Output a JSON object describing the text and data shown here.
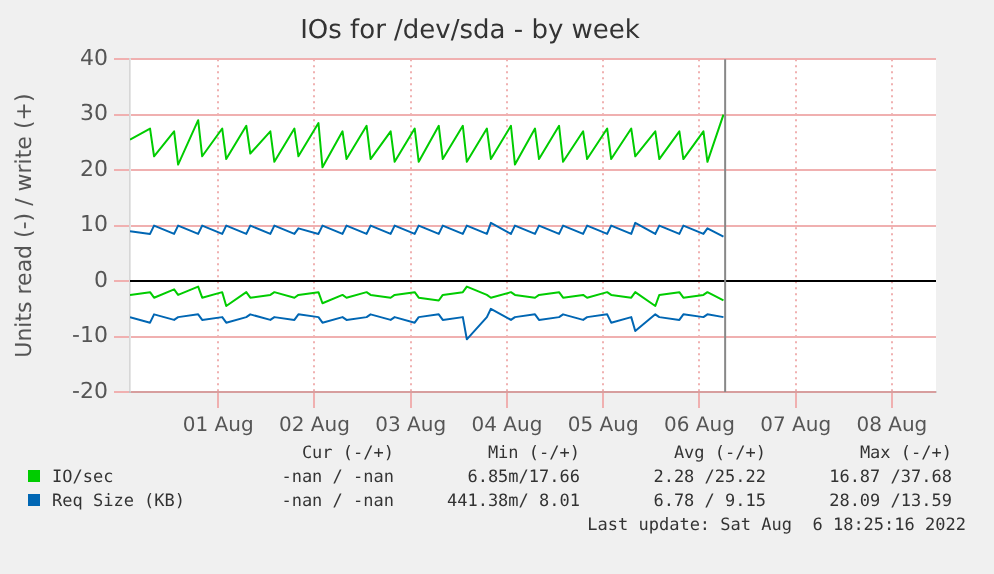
{
  "chart_data": {
    "type": "line",
    "title": "IOs for /dev/sda - by week",
    "ylabel": "Units read (-) / write (+)",
    "x": [
      "2022-07-31T14:00",
      "2022-07-31T19:00",
      "2022-07-31T20:00",
      "2022-08-01T01:00",
      "2022-08-01T02:00",
      "2022-08-01T07:00",
      "2022-08-01T08:00",
      "2022-08-01T13:00",
      "2022-08-01T14:00",
      "2022-08-01T19:00",
      "2022-08-01T20:00",
      "2022-08-02T01:00",
      "2022-08-02T02:00",
      "2022-08-02T07:00",
      "2022-08-02T08:00",
      "2022-08-02T13:00",
      "2022-08-02T14:00",
      "2022-08-02T19:00",
      "2022-08-02T20:00",
      "2022-08-03T01:00",
      "2022-08-03T02:00",
      "2022-08-03T07:00",
      "2022-08-03T08:00",
      "2022-08-03T13:00",
      "2022-08-03T14:00",
      "2022-08-03T19:00",
      "2022-08-03T20:00",
      "2022-08-04T01:00",
      "2022-08-04T02:00",
      "2022-08-04T07:00",
      "2022-08-04T08:00",
      "2022-08-04T13:00",
      "2022-08-04T14:00",
      "2022-08-04T19:00",
      "2022-08-04T20:00",
      "2022-08-05T01:00",
      "2022-08-05T02:00",
      "2022-08-05T07:00",
      "2022-08-05T08:00",
      "2022-08-05T13:00",
      "2022-08-05T14:00",
      "2022-08-05T19:00",
      "2022-08-05T20:00",
      "2022-08-06T01:00",
      "2022-08-06T02:00",
      "2022-08-06T07:00",
      "2022-08-06T08:00",
      "2022-08-06T13:00",
      "2022-08-06T14:00",
      "2022-08-06T18:00"
    ],
    "series": [
      {
        "name": "IO/sec",
        "color": "#00cc00",
        "values": [
          25.5,
          27.5,
          22.5,
          27,
          21,
          29,
          22.5,
          27.5,
          22,
          28,
          23,
          27,
          21.5,
          27.5,
          22.5,
          28.5,
          20.5,
          27,
          22,
          28,
          22,
          27,
          21.5,
          27.5,
          21.5,
          28,
          22,
          28,
          21.5,
          27.5,
          22,
          28,
          21,
          27.5,
          22,
          28,
          21.5,
          27,
          22,
          27.5,
          22,
          27.5,
          22.5,
          27,
          22,
          27,
          22,
          27,
          21.5,
          30
        ]
      },
      {
        "color": "#00cc00",
        "values": [
          -2.5,
          -2,
          -3,
          -1.5,
          -2.5,
          -1,
          -3,
          -2,
          -4.5,
          -2,
          -3,
          -2.5,
          -2,
          -3,
          -2.5,
          -2,
          -4,
          -2.5,
          -3,
          -2,
          -2.5,
          -3,
          -2.5,
          -2,
          -3,
          -3.5,
          -2.5,
          -2,
          -1,
          -2.5,
          -3,
          -2,
          -2.5,
          -3,
          -2.5,
          -2,
          -3,
          -2.5,
          -3,
          -2,
          -2.5,
          -3,
          -2,
          -4.5,
          -2.5,
          -2,
          -3,
          -2.5,
          -2,
          -3.5
        ]
      },
      {
        "name": "Req Size (KB)",
        "color": "#0066b3",
        "values": [
          9,
          8.5,
          10,
          8.5,
          10,
          8.5,
          10,
          8.5,
          10,
          8.5,
          10,
          8.5,
          10,
          8.5,
          9.5,
          8.5,
          10,
          8.5,
          10,
          8.5,
          10,
          8.5,
          10,
          8.5,
          10,
          8.5,
          10,
          8.5,
          10,
          8.5,
          10.5,
          8.5,
          10,
          8.5,
          10,
          8.5,
          10,
          8.5,
          10,
          8.5,
          10,
          8.5,
          10.5,
          8.5,
          10,
          8.5,
          10,
          8.5,
          9.5,
          8
        ]
      },
      {
        "color": "#0066b3",
        "values": [
          -6.5,
          -7.5,
          -6,
          -7,
          -6.5,
          -6,
          -7,
          -6.5,
          -7.5,
          -6.5,
          -6,
          -7,
          -6.5,
          -7,
          -6,
          -6.5,
          -7.5,
          -6.5,
          -7,
          -6.5,
          -6,
          -7,
          -6.5,
          -7.5,
          -6.5,
          -6,
          -7,
          -6.5,
          -10.5,
          -6.5,
          -5,
          -7,
          -6.5,
          -6,
          -7,
          -6.5,
          -6,
          -7,
          -6.5,
          -6,
          -7.5,
          -6.5,
          -9,
          -6,
          -6.5,
          -7,
          -6,
          -6.5,
          -6,
          -6.5
        ]
      }
    ],
    "xlim": [
      "2022-07-31T14:00",
      "2022-08-08T23:00"
    ],
    "xticks": [
      {
        "value": "2022-08-01T12:00",
        "label": "01 Aug"
      },
      {
        "value": "2022-08-02T12:00",
        "label": "02 Aug"
      },
      {
        "value": "2022-08-03T12:00",
        "label": "03 Aug"
      },
      {
        "value": "2022-08-04T12:00",
        "label": "04 Aug"
      },
      {
        "value": "2022-08-05T12:00",
        "label": "05 Aug"
      },
      {
        "value": "2022-08-06T12:00",
        "label": "06 Aug"
      },
      {
        "value": "2022-08-07T12:00",
        "label": "07 Aug"
      },
      {
        "value": "2022-08-08T12:00",
        "label": "08 Aug"
      }
    ],
    "ylim": [
      -20,
      40
    ],
    "yticks": [
      -20,
      -10,
      0,
      10,
      20,
      30,
      40
    ],
    "grid": true,
    "marker": "none",
    "line_style": "solid",
    "legend": "bottom",
    "ref_lines": [
      {
        "axis": "y",
        "value": 0,
        "color": "#000000"
      },
      {
        "axis": "x",
        "value": "2022-08-06T18:25",
        "color": "#888888"
      }
    ],
    "annotations": [
      "Cur (-/+)",
      "Min (-/+)",
      "Avg (-/+)",
      "Max (-/+)",
      "-nan / -nan",
      "6.85m/17.66",
      "2.28 /25.22",
      "16.87 /37.68",
      "-nan / -nan",
      "441.38m/ 8.01",
      "6.78 / 9.15",
      "28.09 /13.59",
      "Last update: Sat Aug  6 18:25:16 2022"
    ]
  }
}
